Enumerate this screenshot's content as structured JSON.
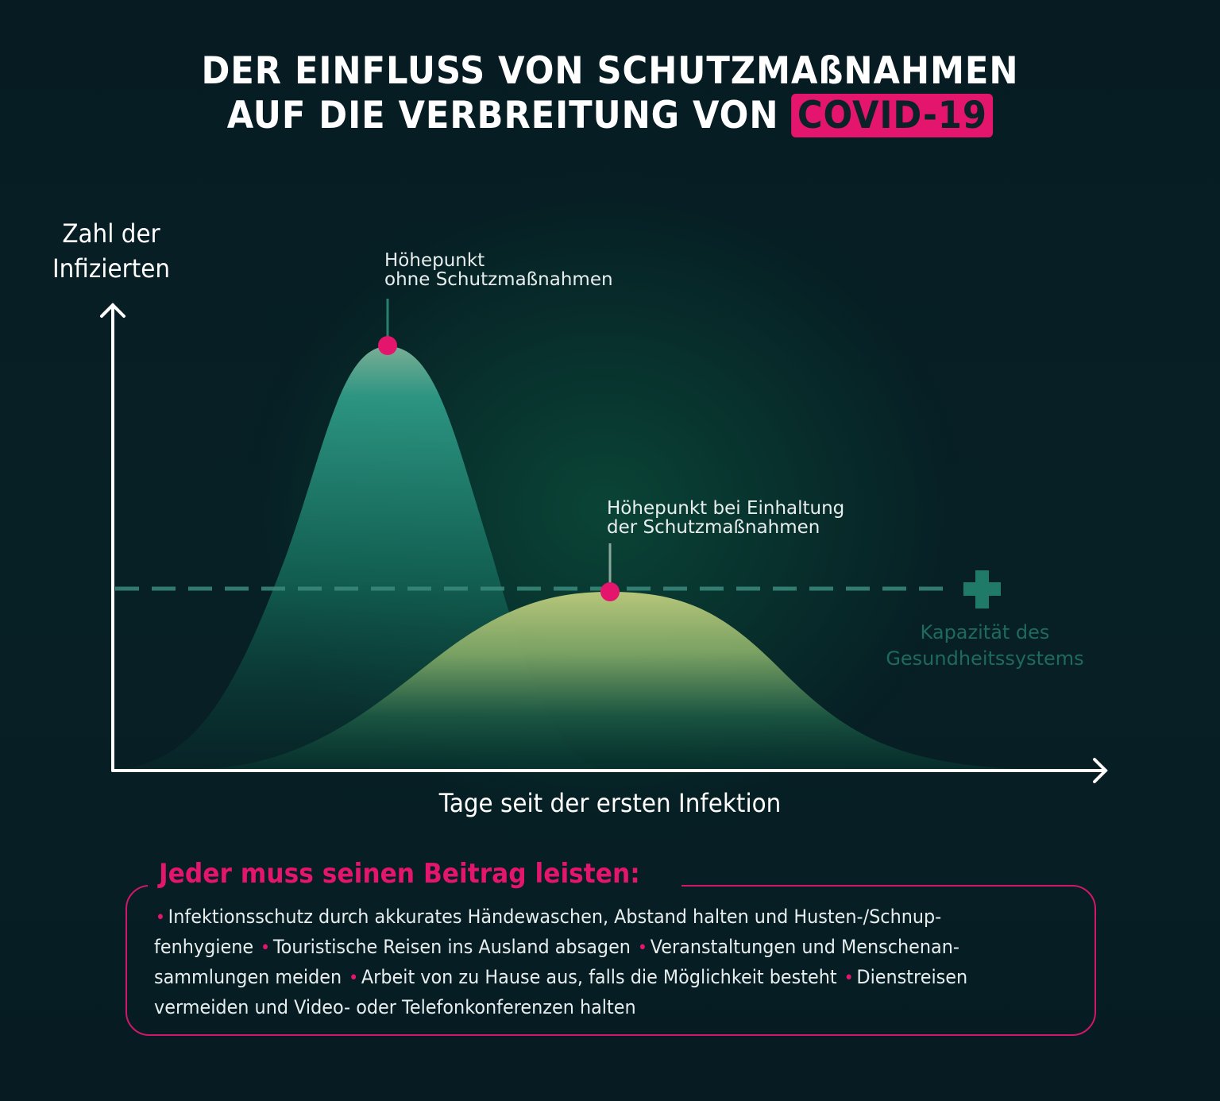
{
  "title": {
    "line1": "DER EINFLUSS VON SCHUTZMAßNAHMEN",
    "line2_prefix": "AUF DIE VERBREITUNG VON",
    "line2_highlight": "COVID-19"
  },
  "colors": {
    "background": "#061c22",
    "accent_pink": "#e4156d",
    "curve_no_measures": "#2e9a86",
    "curve_with_measures": "#a8c070",
    "capacity_line": "#1f6a5e",
    "axis": "#ffffff"
  },
  "chart_data": {
    "type": "area",
    "title": "Der Einfluss von Schutzmaßnahmen auf die Verbreitung von COVID-19",
    "xlabel": "Tage seit der ersten Infektion",
    "ylabel": "Zahl der Infizierten",
    "grid": false,
    "axis_ticks": false,
    "x_range": [
      0,
      100
    ],
    "y_range": [
      0,
      100
    ],
    "series": [
      {
        "name": "ohne Schutzmaßnahmen",
        "shape": "tall narrow bell curve",
        "peak": {
          "x": 27,
          "y": 100
        },
        "x": [
          0,
          10,
          15,
          20,
          27,
          33,
          40,
          45,
          55
        ],
        "values": [
          2,
          18,
          55,
          88,
          100,
          88,
          45,
          15,
          0
        ]
      },
      {
        "name": "mit Schutzmaßnahmen",
        "shape": "low wide bell curve",
        "peak": {
          "x": 50,
          "y": 43
        },
        "x": [
          5,
          15,
          25,
          35,
          50,
          60,
          70,
          80,
          90
        ],
        "values": [
          0,
          5,
          18,
          35,
          43,
          40,
          25,
          8,
          0
        ]
      }
    ],
    "reference_lines": [
      {
        "name": "Kapazität des Gesundheitssystems",
        "y": 43,
        "style": "dashed"
      }
    ],
    "annotations": [
      {
        "text": "Höhepunkt ohne Schutzmaßnahmen",
        "series": "ohne Schutzmaßnahmen",
        "at": "peak"
      },
      {
        "text": "Höhepunkt bei Einhaltung der Schutzmaßnahmen",
        "series": "mit Schutzmaßnahmen",
        "at": "peak"
      },
      {
        "text": "Kapazität des Gesundheitssystems",
        "at": "capacity line end",
        "icon": "plus-cross"
      }
    ]
  },
  "axes": {
    "y_label_line1": "Zahl der",
    "y_label_line2": "Infizierten",
    "x_label": "Tage seit der ersten Infektion"
  },
  "annotations": {
    "peak_without": {
      "line1": "Höhepunkt",
      "line2": "ohne Schutzmaßnahmen"
    },
    "peak_with": {
      "line1": "Höhepunkt bei Einhaltung",
      "line2": "der Schutzmaßnahmen"
    },
    "capacity": {
      "line1": "Kapazität des",
      "line2": "Gesundheitssystems",
      "icon": "medical-cross-icon"
    }
  },
  "measures_box": {
    "title": "Jeder muss seinen Beitrag leisten:",
    "items": [
      "Infektionsschutz durch akkurates Händewaschen, Abstand halten und Husten-/Schnupfenhygiene",
      "Touristische Reisen ins Ausland absagen",
      "Veranstaltungen und Menschenansammlungen meiden",
      "Arbeit von zu Hause aus, falls die Möglichkeit besteht",
      "Dienstreisen vermeiden und Video- oder Telefonkonferenzen halten"
    ],
    "lines": [
      {
        "segments": [
          {
            "bullet": true,
            "text": "Infektionsschutz durch akkurates Händewaschen, Abstand halten und Husten-/Schnup-"
          }
        ]
      },
      {
        "segments": [
          {
            "bullet": false,
            "text": "fenhygiene"
          },
          {
            "bullet": true,
            "text": "Touristische Reisen ins Ausland absagen"
          },
          {
            "bullet": true,
            "text": "Veranstaltungen und Menschenan-"
          }
        ]
      },
      {
        "segments": [
          {
            "bullet": false,
            "text": "sammlungen meiden"
          },
          {
            "bullet": true,
            "text": "Arbeit von zu Hause aus, falls die Möglichkeit besteht"
          },
          {
            "bullet": true,
            "text": "Dienstreisen"
          }
        ]
      },
      {
        "segments": [
          {
            "bullet": false,
            "text": "vermeiden und Video- oder Telefonkonferenzen halten"
          }
        ]
      }
    ],
    "bullet_glyph": "•"
  }
}
